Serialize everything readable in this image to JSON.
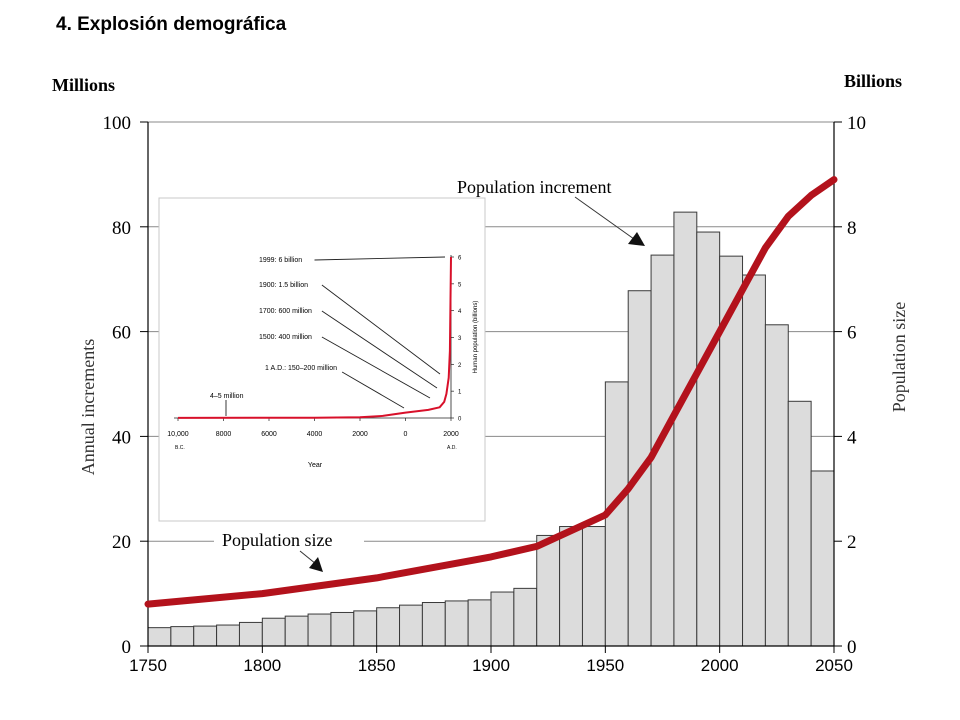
{
  "slide": {
    "title": "4.   Explosión demográfica"
  },
  "chart_data": [
    {
      "type": "bar",
      "left_unit": "Millions",
      "right_unit": "Billions",
      "ylabel_left": "Annual increments",
      "ylabel_right": "Population size",
      "ylim_left": [
        0,
        100
      ],
      "ylim_right": [
        0,
        10
      ],
      "xlim": [
        1750,
        2050
      ],
      "x_ticks": [
        1750,
        1800,
        1850,
        1900,
        1950,
        2000,
        2050
      ],
      "y_ticks_left": [
        0,
        20,
        40,
        60,
        80,
        100
      ],
      "y_ticks_right": [
        0,
        2,
        4,
        6,
        8,
        10
      ],
      "bar_width_years": 10,
      "bar_starts": [
        1750,
        1760,
        1770,
        1780,
        1790,
        1800,
        1810,
        1820,
        1830,
        1840,
        1850,
        1860,
        1870,
        1880,
        1890,
        1900,
        1910,
        1920,
        1930,
        1940,
        1950,
        1960,
        1970,
        1980,
        1990,
        2000,
        2010,
        2020,
        2030,
        2040
      ],
      "series": [
        {
          "name": "Population increment",
          "values": [
            3.5,
            3.7,
            3.8,
            4.0,
            4.5,
            5.3,
            5.7,
            6.1,
            6.4,
            6.7,
            7.3,
            7.8,
            8.3,
            8.6,
            8.8,
            10.3,
            11.0,
            21.1,
            22.8,
            22.8,
            50.4,
            67.8,
            74.6,
            82.8,
            79.0,
            74.4,
            70.8,
            61.3,
            46.7,
            33.4
          ]
        },
        {
          "name": "Population size",
          "axis": "right",
          "x": [
            1750,
            1800,
            1850,
            1900,
            1920,
            1950,
            1960,
            1970,
            1980,
            1990,
            2000,
            2010,
            2020,
            2030,
            2040,
            2050
          ],
          "values": [
            0.8,
            1.0,
            1.3,
            1.7,
            1.9,
            2.5,
            3.0,
            3.6,
            4.4,
            5.2,
            6.0,
            6.8,
            7.6,
            8.2,
            8.6,
            8.9
          ]
        }
      ],
      "annotations": [
        "Population increment",
        "Population size"
      ],
      "grid": true
    },
    {
      "type": "line",
      "xlabel": "Year",
      "ylabel": "Human population (billions)",
      "x_ticks": [
        "10,000",
        "8000",
        "6000",
        "4000",
        "2000",
        "0",
        "2000"
      ],
      "x_tick_values": [
        -10000,
        -8000,
        -6000,
        -4000,
        -2000,
        0,
        2000
      ],
      "x_era_labels": [
        "B.C.",
        "A.D."
      ],
      "y_ticks": [
        0,
        1,
        2,
        3,
        4,
        5,
        6
      ],
      "xlim": [
        -10000,
        2000
      ],
      "ylim": [
        0,
        6
      ],
      "series": [
        {
          "x": [
            -10000,
            -4000,
            -2000,
            -1000,
            0,
            1000,
            1500,
            1700,
            1800,
            1900,
            1950,
            1999
          ],
          "values": [
            0.005,
            0.01,
            0.03,
            0.08,
            0.2,
            0.3,
            0.4,
            0.6,
            0.9,
            1.5,
            2.5,
            6.0
          ]
        }
      ],
      "annotations": [
        {
          "text": "1999: 6 billion",
          "x": 1999,
          "y": 6.0
        },
        {
          "text": "1900: 1.5 billion",
          "x": 1900,
          "y": 1.5
        },
        {
          "text": "1700: 600 million",
          "x": 1700,
          "y": 0.6
        },
        {
          "text": "1500: 400 million",
          "x": 1500,
          "y": 0.4
        },
        {
          "text": "1 A.D.: 150–200 million",
          "x": 0,
          "y": 0.2
        },
        {
          "text": "4–5 million",
          "x": -8000,
          "y": 0.005
        }
      ]
    }
  ]
}
